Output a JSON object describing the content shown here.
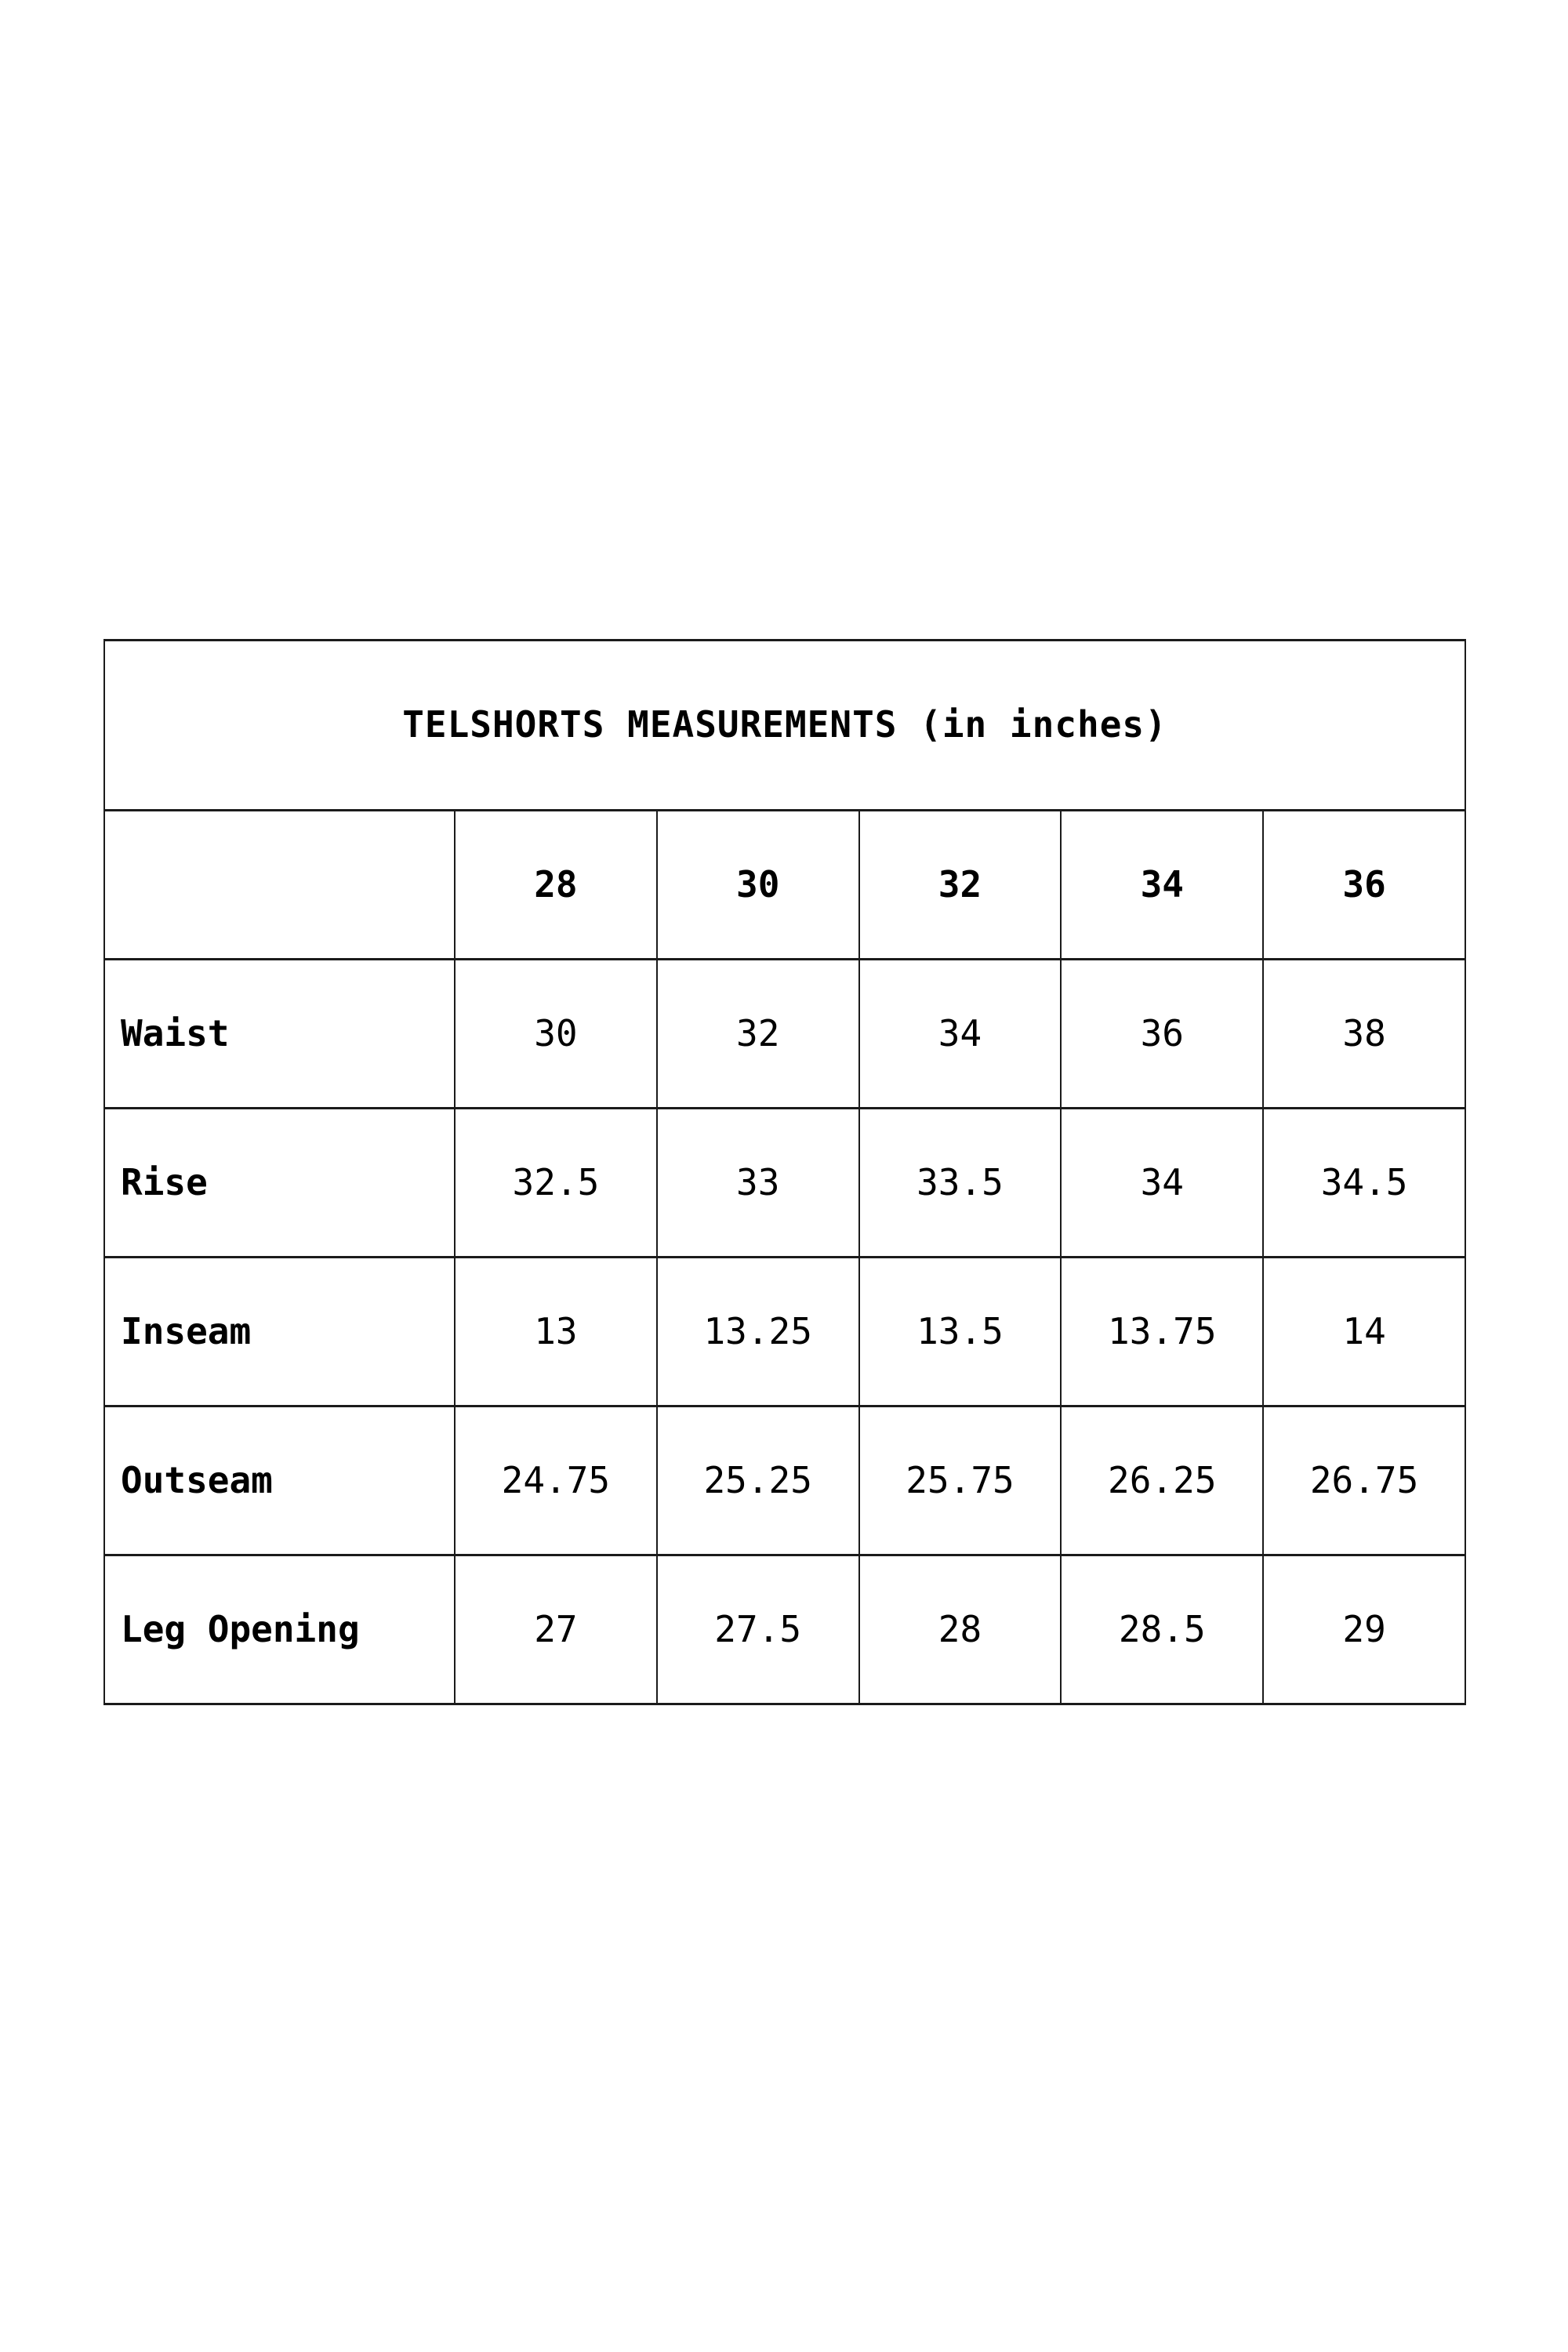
{
  "page": {
    "background_color": "#ffffff",
    "text_color": "#000000",
    "border_color": "#1b1b1b"
  },
  "chart_data": {
    "type": "table",
    "title": "TELSHORTS MEASUREMENTS (in inches)",
    "unit": "inches",
    "corner_cell": "",
    "size_columns": [
      "28",
      "30",
      "32",
      "34",
      "36"
    ],
    "measurements": [
      {
        "label": "Waist",
        "values": [
          "30",
          "32",
          "34",
          "36",
          "38"
        ]
      },
      {
        "label": "Rise",
        "values": [
          "32.5",
          "33",
          "33.5",
          "34",
          "34.5"
        ]
      },
      {
        "label": "Inseam",
        "values": [
          "13",
          "13.25",
          "13.5",
          "13.75",
          "14"
        ]
      },
      {
        "label": "Outseam",
        "values": [
          "24.75",
          "25.25",
          "25.75",
          "26.25",
          "26.75"
        ]
      },
      {
        "label": "Leg Opening",
        "values": [
          "27",
          "27.5",
          "28",
          "28.5",
          "29"
        ]
      }
    ]
  }
}
